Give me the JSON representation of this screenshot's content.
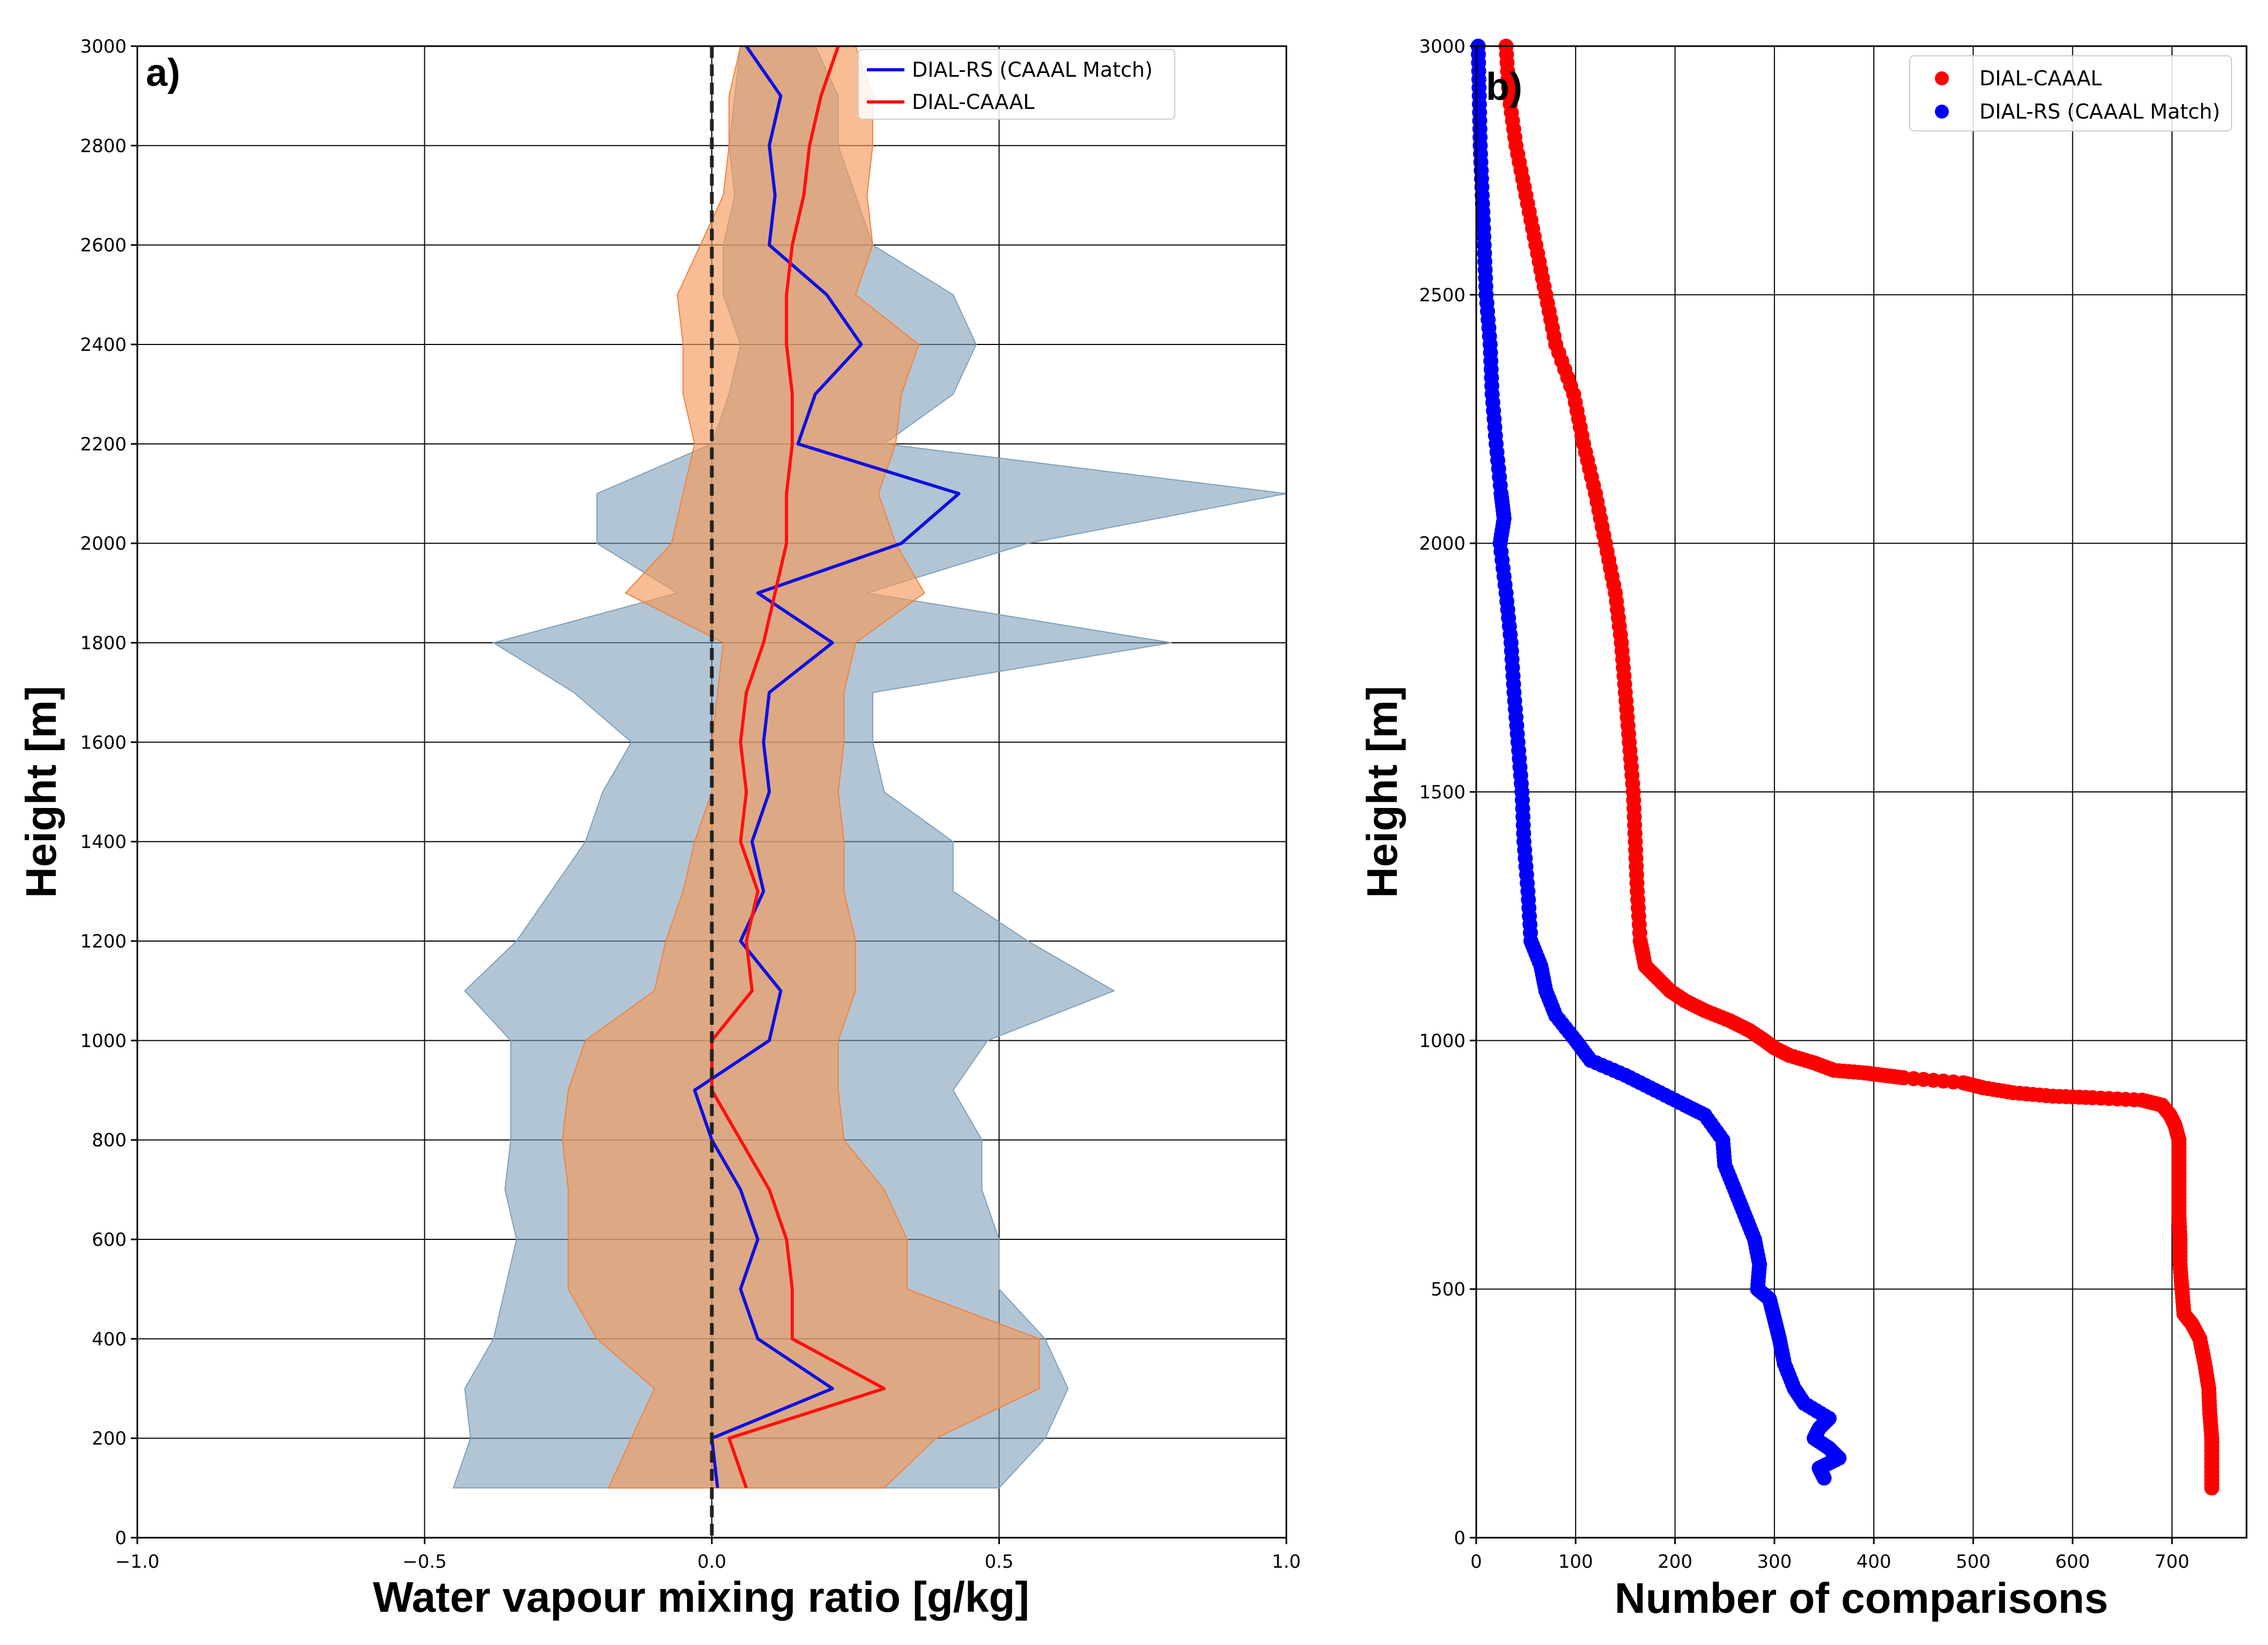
{
  "chart_data": [
    {
      "panel_label": "a)",
      "type": "line",
      "xlabel": "Water vapour mixing ratio [g/kg]",
      "ylabel": "Height [m]",
      "xlim": [
        -1.0,
        1.0
      ],
      "ylim": [
        0,
        3000
      ],
      "xticks": [
        -1.0,
        -0.5,
        0.0,
        0.5,
        1.0
      ],
      "xtick_labels": [
        "−1.0",
        "−0.5",
        "0.0",
        "0.5",
        "1.0"
      ],
      "yticks": [
        0,
        200,
        400,
        600,
        800,
        1000,
        1200,
        1400,
        1600,
        1800,
        2000,
        2200,
        2400,
        2600,
        2800,
        3000
      ],
      "ytick_labels": [
        "0",
        "200",
        "400",
        "600",
        "800",
        "1000",
        "1200",
        "1400",
        "1600",
        "1800",
        "2000",
        "2200",
        "2400",
        "2600",
        "2800",
        "3000"
      ],
      "grid": true,
      "zero_line": {
        "x": 0.0,
        "style": "dashed",
        "color": "#222222"
      },
      "legend": {
        "placement": "top-right",
        "entries": [
          "DIAL-RS (CAAAL Match)",
          "DIAL-CAAAL"
        ]
      },
      "height_levels": [
        100,
        200,
        300,
        400,
        500,
        600,
        700,
        800,
        900,
        1000,
        1100,
        1200,
        1300,
        1400,
        1500,
        1600,
        1700,
        1800,
        1900,
        2000,
        2100,
        2200,
        2300,
        2400,
        2500,
        2600,
        2700,
        2800,
        2900,
        3000
      ],
      "series": [
        {
          "name": "DIAL-RS (CAAAL Match)",
          "color": "#1010e0",
          "values": [
            0.01,
            0.0,
            0.21,
            0.08,
            0.05,
            0.08,
            0.05,
            0.0,
            -0.03,
            0.1,
            0.12,
            0.05,
            0.09,
            0.07,
            0.1,
            0.09,
            0.1,
            0.21,
            0.08,
            0.33,
            0.43,
            0.15,
            0.18,
            0.26,
            0.2,
            0.1,
            0.11,
            0.1,
            0.12,
            0.06
          ],
          "band_low": [
            -0.45,
            -0.42,
            -0.43,
            -0.38,
            -0.36,
            -0.34,
            -0.36,
            -0.35,
            -0.35,
            -0.35,
            -0.43,
            -0.34,
            -0.28,
            -0.22,
            -0.19,
            -0.14,
            -0.24,
            -0.38,
            -0.06,
            -0.2,
            -0.2,
            0.0,
            0.03,
            0.05,
            0.02,
            0.02,
            0.04,
            0.03,
            0.04,
            0.05
          ],
          "band_high": [
            0.5,
            0.58,
            0.62,
            0.58,
            0.5,
            0.5,
            0.47,
            0.47,
            0.42,
            0.48,
            0.7,
            0.55,
            0.42,
            0.42,
            0.3,
            0.28,
            0.28,
            0.8,
            0.27,
            0.55,
            1.0,
            0.3,
            0.42,
            0.46,
            0.42,
            0.28,
            0.25,
            0.22,
            0.22,
            0.18
          ]
        },
        {
          "name": "DIAL-CAAAL",
          "color": "#ff1010",
          "values": [
            0.06,
            0.03,
            0.3,
            0.14,
            0.14,
            0.13,
            0.1,
            0.05,
            0.0,
            0.0,
            0.07,
            0.06,
            0.08,
            0.05,
            0.06,
            0.05,
            0.06,
            0.09,
            0.11,
            0.13,
            0.13,
            0.14,
            0.14,
            0.13,
            0.13,
            0.14,
            0.16,
            0.17,
            0.19,
            0.22
          ],
          "band_low": [
            -0.18,
            -0.14,
            -0.1,
            -0.2,
            -0.25,
            -0.25,
            -0.25,
            -0.26,
            -0.25,
            -0.22,
            -0.1,
            -0.08,
            -0.05,
            -0.03,
            0.0,
            0.0,
            0.01,
            0.02,
            -0.15,
            -0.07,
            -0.05,
            -0.03,
            -0.05,
            -0.05,
            -0.06,
            -0.02,
            0.02,
            0.03,
            0.03,
            0.05
          ],
          "band_high": [
            0.3,
            0.39,
            0.57,
            0.57,
            0.34,
            0.34,
            0.3,
            0.23,
            0.22,
            0.22,
            0.25,
            0.25,
            0.23,
            0.23,
            0.22,
            0.23,
            0.23,
            0.25,
            0.37,
            0.32,
            0.29,
            0.32,
            0.33,
            0.36,
            0.25,
            0.28,
            0.27,
            0.28,
            0.28,
            0.25
          ]
        }
      ]
    },
    {
      "panel_label": "b)",
      "type": "scatter",
      "xlabel": "Number of comparisons",
      "ylabel": "Height [m]",
      "xlim": [
        0,
        775
      ],
      "ylim": [
        0,
        3000
      ],
      "xticks": [
        0,
        100,
        200,
        300,
        400,
        500,
        600,
        700
      ],
      "xtick_labels": [
        "0",
        "100",
        "200",
        "300",
        "400",
        "500",
        "600",
        "700"
      ],
      "yticks": [
        0,
        500,
        1000,
        1500,
        2000,
        2500,
        3000
      ],
      "ytick_labels": [
        "0",
        "500",
        "1000",
        "1500",
        "2000",
        "2500",
        "3000"
      ],
      "grid": true,
      "legend": {
        "placement": "top-right",
        "entries": [
          "DIAL-CAAAL",
          "DIAL-RS (CAAAL Match)"
        ]
      },
      "series": [
        {
          "name": "DIAL-CAAAL",
          "color": "#ff0000",
          "points": [
            [
              740,
              100
            ],
            [
              740,
              150
            ],
            [
              740,
              200
            ],
            [
              738,
              250
            ],
            [
              737,
              300
            ],
            [
              733,
              350
            ],
            [
              728,
              400
            ],
            [
              720,
              430
            ],
            [
              712,
              450
            ],
            [
              710,
              500
            ],
            [
              708,
              550
            ],
            [
              708,
              600
            ],
            [
              707,
              650
            ],
            [
              707,
              700
            ],
            [
              707,
              750
            ],
            [
              707,
              800
            ],
            [
              703,
              830
            ],
            [
              698,
              850
            ],
            [
              690,
              870
            ],
            [
              670,
              880
            ],
            [
              620,
              885
            ],
            [
              580,
              888
            ],
            [
              540,
              895
            ],
            [
              510,
              905
            ],
            [
              490,
              915
            ],
            [
              430,
              925
            ],
            [
              410,
              930
            ],
            [
              390,
              935
            ],
            [
              360,
              940
            ],
            [
              340,
              955
            ],
            [
              315,
              970
            ],
            [
              300,
              985
            ],
            [
              290,
              1000
            ],
            [
              275,
              1020
            ],
            [
              255,
              1040
            ],
            [
              230,
              1060
            ],
            [
              210,
              1080
            ],
            [
              195,
              1100
            ],
            [
              180,
              1130
            ],
            [
              170,
              1150
            ],
            [
              165,
              1200
            ],
            [
              162,
              1300
            ],
            [
              160,
              1400
            ],
            [
              158,
              1500
            ],
            [
              154,
              1600
            ],
            [
              150,
              1700
            ],
            [
              146,
              1800
            ],
            [
              140,
              1900
            ],
            [
              130,
              2000
            ],
            [
              120,
              2100
            ],
            [
              108,
              2200
            ],
            [
              98,
              2300
            ],
            [
              80,
              2400
            ],
            [
              70,
              2500
            ],
            [
              60,
              2600
            ],
            [
              50,
              2700
            ],
            [
              40,
              2800
            ],
            [
              33,
              2900
            ],
            [
              30,
              3000
            ]
          ]
        },
        {
          "name": "DIAL-RS (CAAAL Match)",
          "color": "#0000ff",
          "points": [
            [
              350,
              120
            ],
            [
              345,
              140
            ],
            [
              365,
              160
            ],
            [
              355,
              180
            ],
            [
              340,
              200
            ],
            [
              345,
              220
            ],
            [
              355,
              240
            ],
            [
              330,
              270
            ],
            [
              320,
              300
            ],
            [
              310,
              350
            ],
            [
              305,
              400
            ],
            [
              300,
              440
            ],
            [
              295,
              480
            ],
            [
              283,
              500
            ],
            [
              285,
              550
            ],
            [
              280,
              600
            ],
            [
              270,
              650
            ],
            [
              260,
              700
            ],
            [
              250,
              750
            ],
            [
              248,
              800
            ],
            [
              230,
              850
            ],
            [
              210,
              870
            ],
            [
              180,
              900
            ],
            [
              150,
              930
            ],
            [
              115,
              960
            ],
            [
              100,
              1000
            ],
            [
              80,
              1050
            ],
            [
              70,
              1100
            ],
            [
              65,
              1150
            ],
            [
              55,
              1200
            ],
            [
              52,
              1300
            ],
            [
              48,
              1400
            ],
            [
              46,
              1500
            ],
            [
              42,
              1600
            ],
            [
              38,
              1700
            ],
            [
              35,
              1800
            ],
            [
              30,
              1900
            ],
            [
              24,
              2000
            ],
            [
              28,
              2050
            ],
            [
              25,
              2100
            ],
            [
              20,
              2200
            ],
            [
              16,
              2300
            ],
            [
              14,
              2400
            ],
            [
              10,
              2500
            ],
            [
              8,
              2600
            ],
            [
              6,
              2700
            ],
            [
              4,
              2800
            ],
            [
              3,
              2900
            ],
            [
              2,
              3000
            ]
          ]
        }
      ]
    }
  ]
}
